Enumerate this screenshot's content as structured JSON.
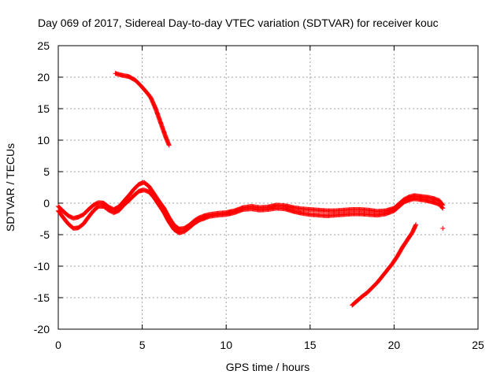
{
  "chart_data": {
    "type": "scatter",
    "title": "Day 069 of 2017, Sidereal Day-to-day VTEC variation (SDTVAR) for receiver kouc",
    "xlabel": "GPS time / hours",
    "ylabel": "SDTVAR / TECUs",
    "xlim": [
      0,
      25
    ],
    "ylim": [
      -20,
      25
    ],
    "xticks": [
      0,
      5,
      10,
      15,
      20,
      25
    ],
    "yticks": [
      -20,
      -15,
      -10,
      -5,
      0,
      5,
      10,
      15,
      20,
      25
    ],
    "xtick_labels": [
      "0",
      "5",
      "10",
      "15",
      "20",
      "25"
    ],
    "ytick_labels": [
      "-20",
      "-15",
      "-10",
      "-5",
      "0",
      "5",
      "10",
      "15",
      "20",
      "25"
    ],
    "grid": true,
    "marker": "+",
    "color": "#ff0000",
    "series": [
      {
        "name": "upper arc",
        "x": [
          3.4,
          3.8,
          4.2,
          4.6,
          4.9,
          5.2,
          5.5,
          5.8,
          6.0,
          6.2,
          6.4,
          6.6
        ],
        "y": [
          20.6,
          20.3,
          20.1,
          19.5,
          18.7,
          17.8,
          16.8,
          15.0,
          13.5,
          12.0,
          10.5,
          9.2
        ]
      },
      {
        "name": "main trace band A",
        "x": [
          0.0,
          0.3,
          0.6,
          0.9,
          1.2,
          1.5,
          1.8,
          2.1,
          2.4,
          2.7,
          3.0,
          3.3,
          3.6,
          3.9,
          4.2,
          4.5,
          4.8,
          5.1,
          5.4,
          5.7,
          6.0,
          6.3,
          6.6,
          6.9,
          7.2,
          7.5,
          7.8,
          8.1,
          8.4,
          8.7,
          9.0,
          9.5,
          10.0,
          10.5,
          11.0,
          11.5,
          12.0,
          12.5,
          13.0,
          13.5,
          14.0,
          14.5,
          15.0,
          15.5,
          16.0,
          16.5,
          17.0,
          17.5,
          18.0,
          18.5,
          19.0,
          19.5,
          20.0,
          20.3,
          20.6,
          20.9,
          21.2,
          21.5,
          21.8,
          22.1,
          22.4,
          22.7,
          22.9
        ],
        "y": [
          -0.5,
          -1.3,
          -2.0,
          -2.4,
          -2.2,
          -1.8,
          -1.0,
          -0.3,
          0.1,
          0.0,
          -0.6,
          -1.0,
          -0.6,
          0.3,
          1.2,
          2.2,
          3.0,
          3.3,
          2.7,
          1.5,
          0.3,
          -0.8,
          -2.3,
          -3.5,
          -4.1,
          -4.0,
          -3.5,
          -2.8,
          -2.3,
          -2.0,
          -1.8,
          -1.6,
          -1.5,
          -1.2,
          -0.7,
          -0.5,
          -0.7,
          -0.6,
          -0.3,
          -0.4,
          -0.7,
          -0.9,
          -1.0,
          -1.1,
          -1.2,
          -1.2,
          -1.1,
          -1.0,
          -1.0,
          -1.1,
          -1.3,
          -1.2,
          -0.8,
          -0.1,
          0.6,
          1.0,
          1.2,
          1.1,
          1.0,
          0.9,
          0.7,
          0.4,
          -0.3
        ]
      },
      {
        "name": "main trace band B",
        "x": [
          0.0,
          0.3,
          0.6,
          0.9,
          1.2,
          1.5,
          1.8,
          2.1,
          2.4,
          2.7,
          3.0,
          3.3,
          3.6,
          3.9,
          4.2,
          4.5,
          4.8,
          5.1,
          5.4,
          5.7,
          6.0,
          6.3,
          6.6,
          6.9,
          7.2,
          7.5,
          7.8,
          8.1,
          8.4,
          8.7,
          9.0,
          9.5,
          10.0,
          10.5,
          11.0,
          11.5,
          12.0,
          12.5,
          13.0,
          13.5,
          14.0,
          14.5,
          15.0,
          15.5,
          16.0,
          16.5,
          17.0,
          17.5,
          18.0,
          18.5,
          19.0,
          19.5,
          20.0,
          20.3,
          20.6,
          20.9,
          21.2,
          21.5,
          21.8,
          22.1,
          22.4,
          22.7,
          22.9
        ],
        "y": [
          -1.2,
          -2.3,
          -3.3,
          -4.0,
          -3.9,
          -3.3,
          -2.2,
          -1.2,
          -0.5,
          -0.5,
          -1.1,
          -1.5,
          -1.2,
          -0.3,
          0.4,
          1.2,
          1.9,
          2.1,
          1.8,
          0.9,
          -0.3,
          -1.5,
          -3.0,
          -4.2,
          -4.7,
          -4.5,
          -3.9,
          -3.2,
          -2.7,
          -2.4,
          -2.1,
          -1.9,
          -1.8,
          -1.5,
          -1.0,
          -0.9,
          -1.1,
          -1.0,
          -0.8,
          -0.9,
          -1.3,
          -1.6,
          -1.8,
          -1.9,
          -2.0,
          -1.9,
          -1.8,
          -1.7,
          -1.7,
          -1.8,
          -1.9,
          -1.7,
          -1.2,
          -0.5,
          0.2,
          0.5,
          0.7,
          0.6,
          0.5,
          0.3,
          0.1,
          -0.2,
          -0.8
        ]
      },
      {
        "name": "lower arc",
        "x": [
          17.5,
          17.8,
          18.1,
          18.4,
          18.7,
          19.0,
          19.3,
          19.6,
          19.9,
          20.2,
          20.5,
          20.8,
          21.1,
          21.3
        ],
        "y": [
          -16.2,
          -15.5,
          -14.8,
          -14.2,
          -13.4,
          -12.6,
          -11.6,
          -10.6,
          -9.6,
          -8.4,
          -7.0,
          -5.8,
          -4.6,
          -3.4
        ]
      },
      {
        "name": "isolated point",
        "x": [
          22.9
        ],
        "y": [
          -4.0
        ]
      }
    ]
  }
}
